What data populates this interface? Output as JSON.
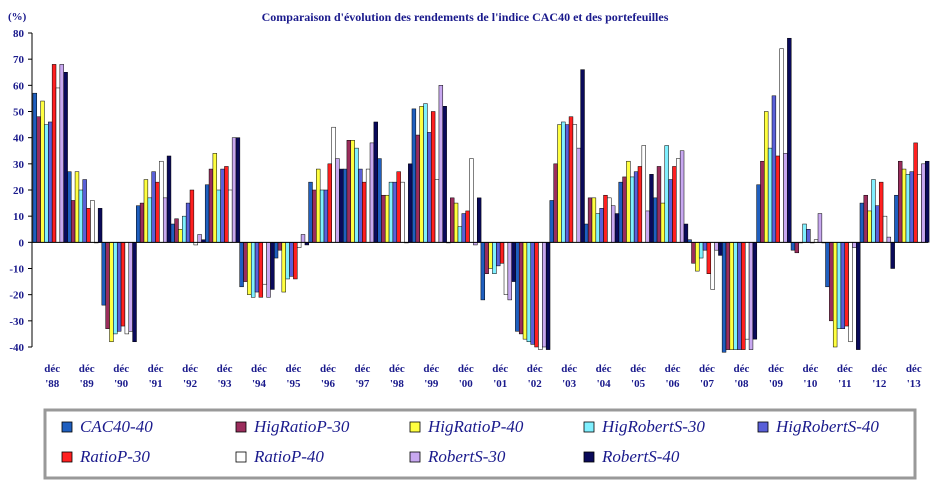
{
  "chart_data": {
    "type": "bar",
    "title": "Comparaison d'évolution des rendements de l'indice CAC40 et des portefeuilles",
    "ylabel": "(%)",
    "xlabel": "",
    "ylim": [
      -40,
      80
    ],
    "yticks": [
      -40,
      -30,
      -20,
      -10,
      0,
      10,
      20,
      30,
      40,
      50,
      60,
      70,
      80
    ],
    "grid": false,
    "legend_position": "bottom",
    "categories": [
      [
        "déc",
        "'88"
      ],
      [
        "déc",
        "'89"
      ],
      [
        "déc",
        "'90"
      ],
      [
        "déc",
        "'91"
      ],
      [
        "déc",
        "'92"
      ],
      [
        "déc",
        "'93"
      ],
      [
        "déc",
        "'94"
      ],
      [
        "déc",
        "'95"
      ],
      [
        "déc",
        "'96"
      ],
      [
        "déc",
        "'97"
      ],
      [
        "déc",
        "'98"
      ],
      [
        "déc",
        "'99"
      ],
      [
        "déc",
        "'00"
      ],
      [
        "déc",
        "'01"
      ],
      [
        "déc",
        "'02"
      ],
      [
        "déc",
        "'03"
      ],
      [
        "déc",
        "'04"
      ],
      [
        "déc",
        "'05"
      ],
      [
        "déc",
        "'06"
      ],
      [
        "déc",
        "'07"
      ],
      [
        "déc",
        "'08"
      ],
      [
        "déc",
        "'09"
      ],
      [
        "déc",
        "'10"
      ],
      [
        "déc",
        "'11"
      ],
      [
        "déc",
        "'12"
      ],
      [
        "déc",
        "'13"
      ]
    ],
    "series": [
      {
        "name": "CAC40-40",
        "color": "#1f5fbf",
        "values": [
          57,
          27,
          -24,
          14,
          7,
          22,
          -17,
          -6,
          23,
          28,
          32,
          51,
          0,
          -22,
          -34,
          16,
          7,
          23,
          17,
          1,
          -42,
          22,
          -3,
          -17,
          15,
          18
        ]
      },
      {
        "name": "HigRatioP-30",
        "color": "#9b2d5c",
        "values": [
          48,
          16,
          -33,
          15,
          9,
          28,
          -15,
          -3,
          20,
          39,
          18,
          41,
          17,
          -12,
          -35,
          30,
          17,
          25,
          29,
          -8,
          -41,
          31,
          -4,
          -30,
          18,
          31
        ]
      },
      {
        "name": "HigRatioP-40",
        "color": "#ffff40",
        "values": [
          54,
          27,
          -38,
          24,
          5,
          34,
          -20,
          -19,
          28,
          39,
          18,
          52,
          15,
          -10,
          -37,
          45,
          17,
          31,
          15,
          -11,
          -41,
          50,
          0,
          -40,
          12,
          28
        ]
      },
      {
        "name": "HigRobertS-30",
        "color": "#80f0ff",
        "values": [
          45,
          20,
          -35,
          17,
          10,
          20,
          -21,
          -14,
          20,
          36,
          23,
          53,
          6,
          -12,
          -38,
          46,
          11,
          25,
          37,
          -6,
          -41,
          36,
          7,
          -33,
          24,
          26
        ]
      },
      {
        "name": "HigRobertS-40",
        "color": "#5a60d8",
        "values": [
          46,
          24,
          -34,
          27,
          15,
          28,
          -19,
          -13,
          20,
          28,
          23,
          42,
          11,
          -9,
          -39,
          45,
          13,
          27,
          24,
          -3,
          -41,
          56,
          5,
          -33,
          14,
          27
        ]
      },
      {
        "name": "RatioP-30",
        "color": "#ff2020",
        "values": [
          68,
          13,
          -32,
          23,
          20,
          29,
          -21,
          -14,
          30,
          23,
          27,
          50,
          12,
          -8,
          -40,
          48,
          18,
          29,
          29,
          -12,
          -41,
          33,
          0,
          -32,
          23,
          38
        ]
      },
      {
        "name": "RatioP-40",
        "color": "#ffffff",
        "values": [
          59,
          16,
          -35,
          31,
          -1,
          20,
          -16,
          -2,
          44,
          28,
          23,
          24,
          32,
          -20,
          -41,
          45,
          17,
          37,
          32,
          -18,
          -37,
          74,
          1,
          -38,
          10,
          26
        ]
      },
      {
        "name": "RobertS-30",
        "color": "#c8a8f0",
        "values": [
          68,
          0,
          -34,
          17,
          3,
          40,
          -21,
          3,
          32,
          38,
          0,
          60,
          -1,
          -22,
          -40,
          36,
          14,
          12,
          35,
          -3,
          -41,
          34,
          11,
          -2,
          2,
          30
        ]
      },
      {
        "name": "RobertS-40",
        "color": "#0a0a5a",
        "values": [
          65,
          13,
          -38,
          33,
          1,
          40,
          -18,
          -1,
          28,
          46,
          30,
          52,
          17,
          -15,
          -41,
          66,
          11,
          26,
          7,
          -5,
          -37,
          78,
          0,
          -41,
          -10,
          31
        ]
      }
    ]
  }
}
